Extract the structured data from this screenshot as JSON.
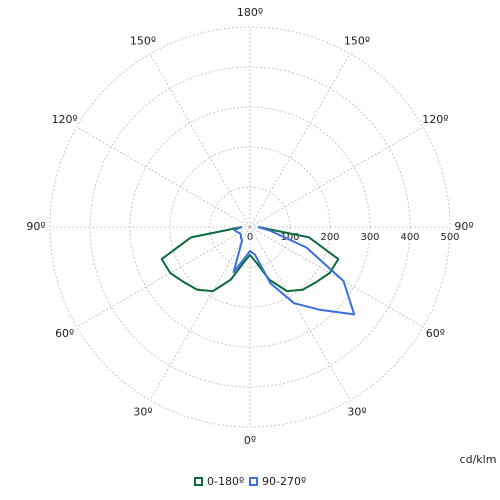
{
  "chart_data": {
    "type": "polar",
    "unit_label": "cd/klm",
    "x": [
      -90,
      -80,
      -70,
      -60,
      -50,
      -40,
      -30,
      -20,
      -10,
      0,
      10,
      20,
      30,
      40,
      50,
      60,
      70,
      80,
      90
    ],
    "series": [
      {
        "name": "0-180º",
        "color": "#0b6b3a",
        "values": [
          20,
          150,
          235,
          230,
          215,
          205,
          185,
          140,
          90,
          70,
          90,
          140,
          185,
          205,
          215,
          230,
          235,
          150,
          20
        ]
      },
      {
        "name": "90-270º",
        "color": "#3a6fe0",
        "values": [
          20,
          40,
          35,
          30,
          30,
          35,
          40,
          120,
          80,
          60,
          70,
          150,
          220,
          270,
          340,
          270,
          150,
          50,
          20
        ]
      }
    ],
    "rlim": [
      0,
      500
    ],
    "rticks": [
      0,
      100,
      200,
      300,
      400,
      500
    ],
    "angle_ticks": [
      {
        "value": 0,
        "label": "0º"
      },
      {
        "value": 30,
        "label": "30º"
      },
      {
        "value": 60,
        "label": "60º"
      },
      {
        "value": 90,
        "label": "90º"
      },
      {
        "value": 120,
        "label": "120º"
      },
      {
        "value": 150,
        "label": "150º"
      },
      {
        "value": 180,
        "label": "180º"
      }
    ],
    "grid": true
  }
}
